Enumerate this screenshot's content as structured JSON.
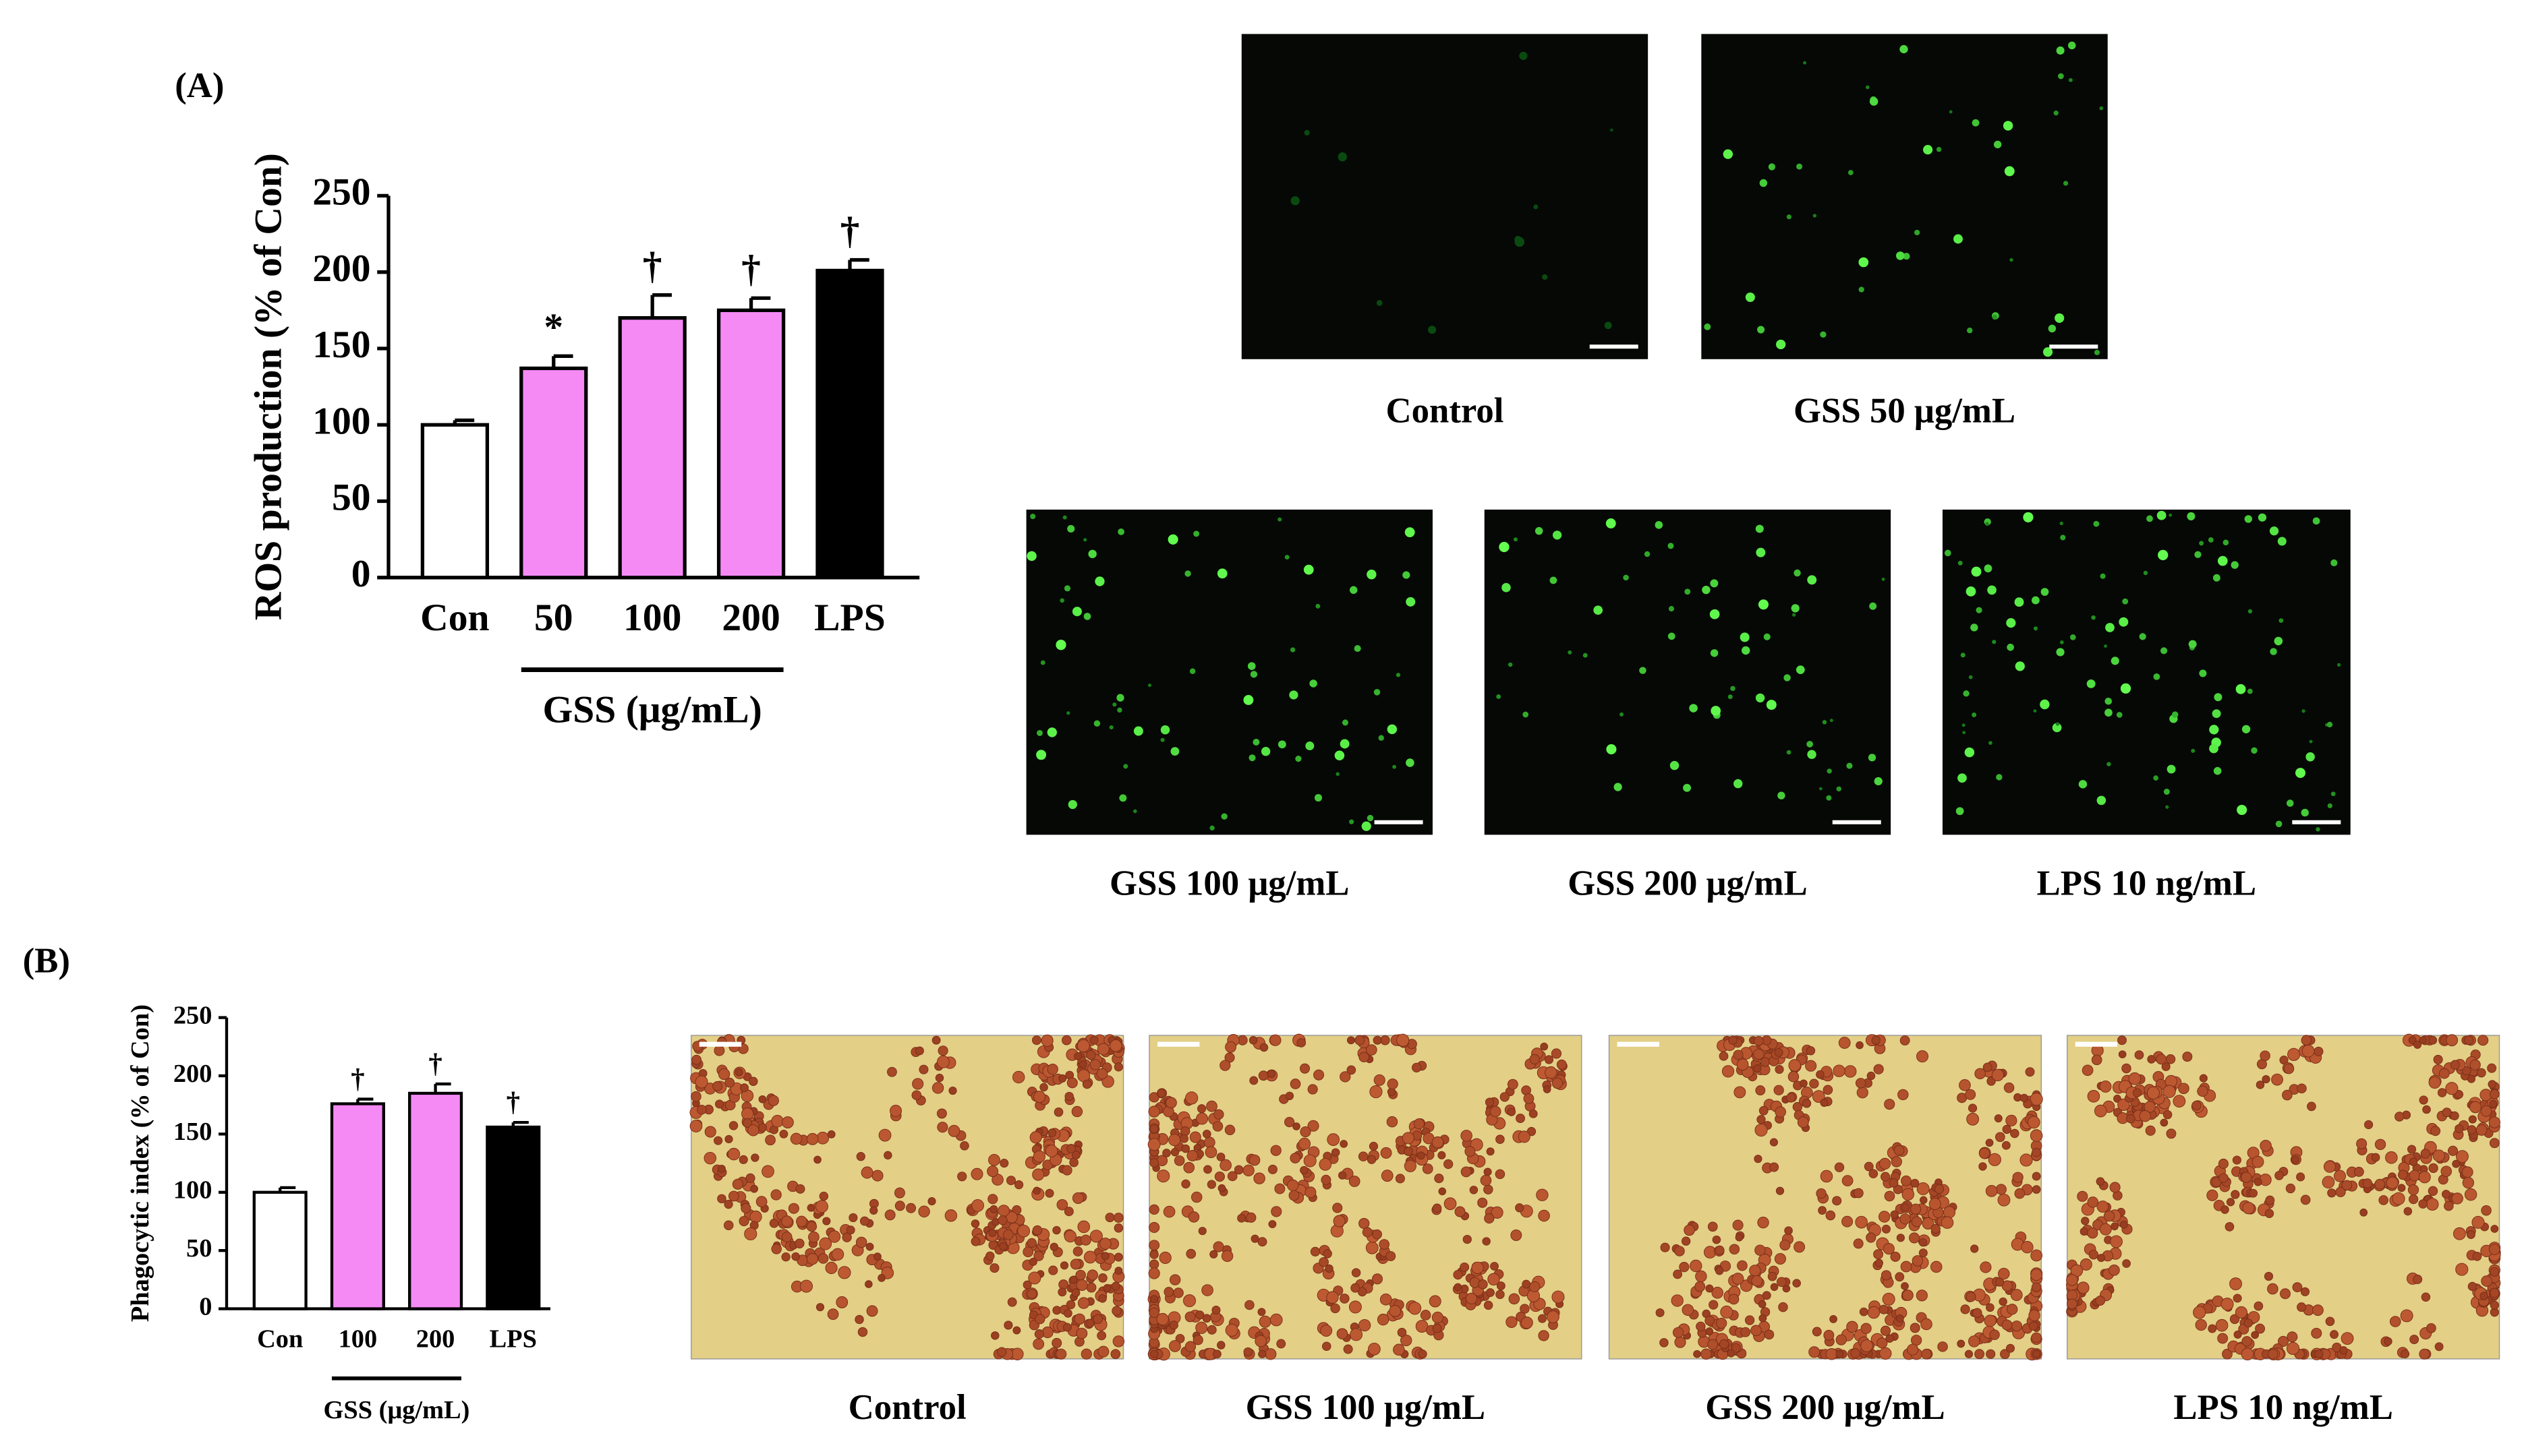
{
  "chart_data": [
    {
      "type": "bar",
      "y_label": "ROS production (% of Con)",
      "categories": [
        "Con",
        "50",
        "100",
        "200",
        "LPS"
      ],
      "values": [
        100,
        137,
        170,
        175,
        201
      ],
      "errors": [
        3,
        8,
        15,
        8,
        7
      ],
      "colors": [
        "#ffffff",
        "#f58af5",
        "#f58af5",
        "#f58af5",
        "#000000"
      ],
      "annotations": [
        null,
        "*",
        "†",
        "†",
        "†"
      ],
      "group_label": "GSS (μg/mL)",
      "ylim": [
        0,
        250
      ],
      "yticks": [
        0,
        50,
        100,
        150,
        200,
        250
      ]
    },
    {
      "type": "bar",
      "y_label": "Phagocytic index (% of Con)",
      "categories": [
        "Con",
        "100",
        "200",
        "LPS"
      ],
      "values": [
        100,
        176,
        185,
        156
      ],
      "errors": [
        4,
        4,
        8,
        4
      ],
      "colors": [
        "#ffffff",
        "#f58af5",
        "#f58af5",
        "#000000"
      ],
      "annotations": [
        null,
        "†",
        "†",
        "†"
      ],
      "group_label": "GSS (μg/mL)",
      "ylim": [
        0,
        250
      ],
      "yticks": [
        0,
        50,
        100,
        150,
        200,
        250
      ]
    }
  ],
  "figure": {
    "panel_a": {
      "label": "(A)",
      "images": [
        "Control",
        "GSS 50 μg/mL",
        "GSS 100 μg/mL",
        "GSS 200 μg/mL",
        "LPS 10 ng/mL"
      ]
    },
    "panel_b": {
      "label": "(B)",
      "images": [
        "Control",
        "GSS 100 μg/mL",
        "GSS 200 μg/mL",
        "LPS 10 ng/mL"
      ]
    }
  }
}
